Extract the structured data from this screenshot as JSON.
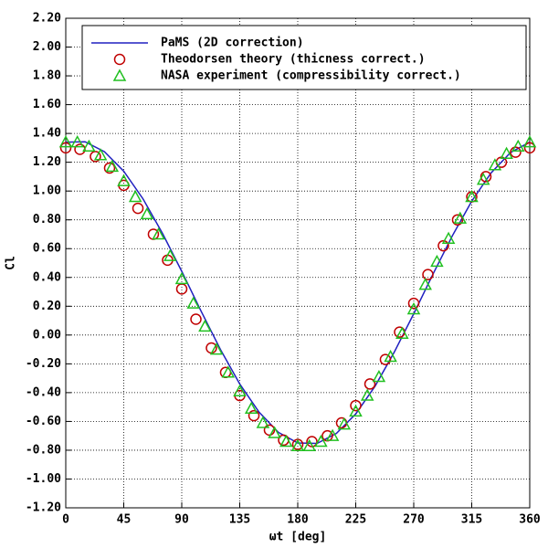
{
  "chart_data": {
    "type": "line",
    "xlabel": "ωt [deg]",
    "ylabel": "Cl",
    "xlim": [
      0,
      360
    ],
    "xticks": [
      0,
      45,
      90,
      135,
      180,
      225,
      270,
      315,
      360
    ],
    "ylim": [
      -1.2,
      2.2
    ],
    "yticks": [
      {
        "value": -1.2,
        "label": "-1.20"
      },
      {
        "value": -1.0,
        "label": "-1.00"
      },
      {
        "value": -0.8,
        "label": "-0.80"
      },
      {
        "value": -0.6,
        "label": "-0.60"
      },
      {
        "value": -0.4,
        "label": "-0.40"
      },
      {
        "value": -0.2,
        "label": "-0.20"
      },
      {
        "value": 0,
        "label": "0.00"
      },
      {
        "value": 0.2,
        "label": "0.20"
      },
      {
        "value": 0.4,
        "label": "0.40"
      },
      {
        "value": 0.6,
        "label": "0.60"
      },
      {
        "value": 0.8,
        "label": "0.80"
      },
      {
        "value": 1.0,
        "label": "1.00"
      },
      {
        "value": 1.2,
        "label": "1.20"
      },
      {
        "value": 1.4,
        "label": "1.40"
      },
      {
        "value": 1.6,
        "label": "1.60"
      },
      {
        "value": 1.8,
        "label": "1.80"
      },
      {
        "value": 2.0,
        "label": "2.00"
      },
      {
        "value": 2.2,
        "label": "2.20"
      }
    ],
    "grid": true,
    "legend": "top",
    "series": [
      {
        "name": "PaMS (2D correction)",
        "color": "#2020c0",
        "marker": "line",
        "x": [
          0,
          15,
          30,
          45,
          60,
          75,
          90,
          105,
          120,
          135,
          150,
          165,
          180,
          195,
          210,
          225,
          240,
          255,
          270,
          285,
          300,
          315,
          330,
          345,
          360
        ],
        "values": [
          1.34,
          1.342,
          1.273,
          1.138,
          0.945,
          0.707,
          0.442,
          0.166,
          -0.1,
          -0.34,
          -0.536,
          -0.676,
          -0.75,
          -0.753,
          -0.683,
          -0.548,
          -0.355,
          -0.117,
          0.148,
          0.424,
          0.69,
          0.93,
          1.126,
          1.267,
          1.34
        ]
      },
      {
        "name": "Theodorsen theory (thicness correct.)",
        "color": "#c00000",
        "marker": "circle",
        "x": [
          0,
          11,
          23,
          34,
          45,
          56,
          68,
          79,
          90,
          101,
          113,
          124,
          135,
          146,
          158,
          169,
          180,
          191,
          203,
          214,
          225,
          236,
          248,
          259,
          270,
          281,
          293,
          304,
          315,
          326,
          338,
          349,
          360
        ],
        "values": [
          1.3,
          1.29,
          1.24,
          1.16,
          1.04,
          0.88,
          0.7,
          0.52,
          0.32,
          0.11,
          -0.09,
          -0.26,
          -0.42,
          -0.56,
          -0.66,
          -0.73,
          -0.76,
          -0.74,
          -0.7,
          -0.61,
          -0.49,
          -0.34,
          -0.17,
          0.02,
          0.22,
          0.42,
          0.62,
          0.8,
          0.96,
          1.1,
          1.2,
          1.27,
          1.3
        ]
      },
      {
        "name": "NASA experiment (compressibility correct.)",
        "color": "#20c020",
        "marker": "triangle",
        "x": [
          0,
          9,
          18,
          27,
          36,
          45,
          54,
          63,
          72,
          81,
          90,
          99,
          108,
          117,
          126,
          135,
          144,
          153,
          162,
          171,
          180,
          189,
          198,
          207,
          216,
          225,
          234,
          243,
          252,
          261,
          270,
          279,
          288,
          297,
          306,
          315,
          324,
          333,
          342,
          351,
          360
        ],
        "values": [
          1.34,
          1.34,
          1.31,
          1.25,
          1.17,
          1.07,
          0.96,
          0.84,
          0.7,
          0.55,
          0.39,
          0.22,
          0.06,
          -0.1,
          -0.26,
          -0.39,
          -0.51,
          -0.61,
          -0.68,
          -0.74,
          -0.77,
          -0.77,
          -0.74,
          -0.7,
          -0.62,
          -0.53,
          -0.42,
          -0.29,
          -0.15,
          0.01,
          0.18,
          0.35,
          0.51,
          0.67,
          0.81,
          0.96,
          1.08,
          1.18,
          1.26,
          1.31,
          1.34
        ]
      }
    ]
  }
}
